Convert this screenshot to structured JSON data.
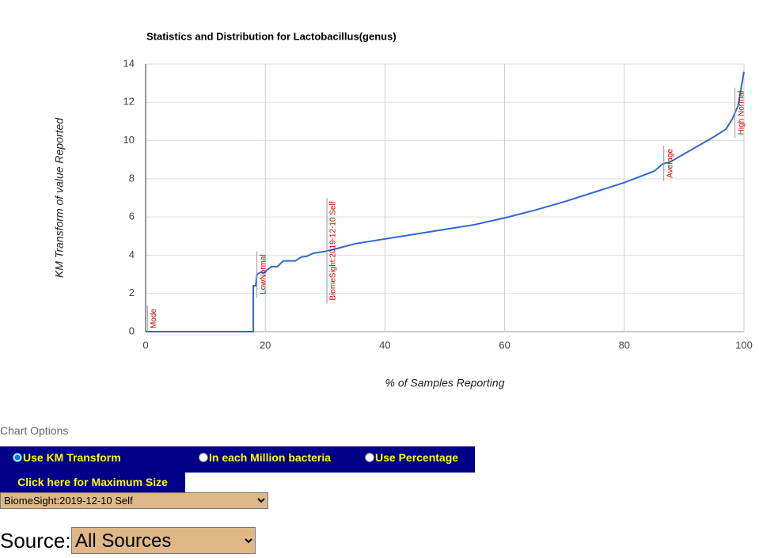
{
  "chart_data": {
    "type": "line",
    "title": "Statistics and Distribution for Lactobacillus(genus)",
    "x_label": "% of Samples Reporting",
    "y_label": "KM Transform of value Reported",
    "x": [
      0,
      18,
      18,
      18.4,
      18.6,
      19.2,
      20,
      20.2,
      21,
      22,
      23,
      25,
      26,
      27,
      28,
      30,
      32,
      35,
      40,
      45,
      50,
      55,
      60,
      65,
      70,
      75,
      80,
      85,
      86.5,
      87.5,
      90,
      95,
      97,
      98,
      99,
      100
    ],
    "values": [
      0,
      0,
      2.4,
      2.4,
      3.0,
      3.1,
      3.1,
      3.2,
      3.4,
      3.4,
      3.7,
      3.7,
      3.9,
      3.95,
      4.1,
      4.2,
      4.35,
      4.6,
      4.85,
      5.1,
      5.35,
      5.6,
      5.95,
      6.35,
      6.8,
      7.3,
      7.8,
      8.4,
      8.8,
      8.85,
      9.3,
      10.2,
      10.6,
      11.1,
      11.8,
      13.6
    ],
    "color": "#3366cc",
    "xlim": [
      0,
      100
    ],
    "xticks": [
      0,
      20,
      40,
      60,
      80,
      100
    ],
    "ylim": [
      0,
      14
    ],
    "yticks": [
      0,
      2,
      4,
      6,
      8,
      10,
      12,
      14
    ],
    "grid": true,
    "annotations": [
      {
        "x": 0.3,
        "label": "Mode"
      },
      {
        "x": 18.6,
        "label": "LowNormal"
      },
      {
        "x": 30.3,
        "label": "BiomeSight:2019-12-10 Self"
      },
      {
        "x": 86.6,
        "label": "Average"
      },
      {
        "x": 98.5,
        "label": "High Normal"
      }
    ]
  },
  "options": {
    "label": "Chart Options",
    "radios": [
      "Use KM Transform",
      "In each Million bacteria",
      "Use Percentage"
    ],
    "button": "Click here for Maximum Size",
    "sample_select": "BiomeSight:2019-12-10 Self",
    "source_label": "Source:",
    "source_select": "All Sources"
  }
}
